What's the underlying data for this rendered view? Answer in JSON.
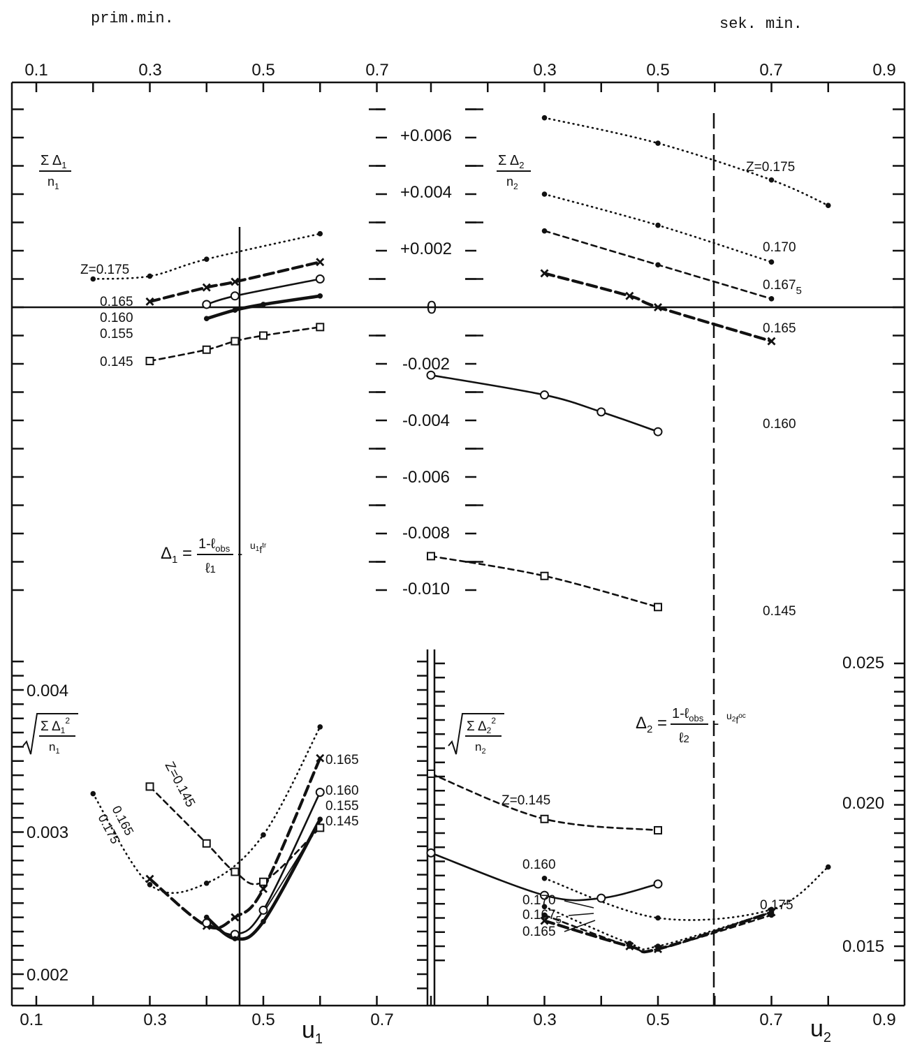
{
  "header": {
    "left": "prim.min.",
    "right": "sek. min."
  },
  "axes": {
    "u1_ticks": [
      "0.1",
      "0.3",
      "0.5",
      "0.7"
    ],
    "u2_ticks": [
      "0.3",
      "0.5",
      "0.7",
      "0.9"
    ],
    "u1_label": "u",
    "u1_sub": "1",
    "u2_label": "u",
    "u2_sub": "2",
    "mid_ticks": [
      "+0.006",
      "+0.004",
      "+0.002",
      "0",
      "-0.002",
      "-0.004",
      "-0.006",
      "-0.008",
      "-0.010"
    ],
    "bl_ticks": [
      "0.004",
      "0.003",
      "0.002"
    ],
    "br_ticks": [
      "0.025",
      "0.020",
      "0.015"
    ]
  },
  "colors": {
    "ink": "#111111",
    "background": "#ffffff"
  },
  "chart_data": [
    {
      "type": "line",
      "ylabel_num": "Σ Δ",
      "ylabel_sub": "1",
      "ylabel_den": "n",
      "ylabel_den_sub": "1",
      "x_unit": "u1",
      "ylim": [
        -0.01,
        0.006
      ],
      "series": [
        {
          "name": "Z=0.175",
          "style": "dotted",
          "marker": "dot",
          "points": [
            [
              0.2,
              0.001
            ],
            [
              0.3,
              0.0011
            ],
            [
              0.4,
              0.0017
            ],
            [
              0.6,
              0.0026
            ]
          ]
        },
        {
          "name": "0.165",
          "style": "dashed-bold",
          "marker": "x",
          "points": [
            [
              0.3,
              0.0002
            ],
            [
              0.4,
              0.0007
            ],
            [
              0.45,
              0.0009
            ],
            [
              0.6,
              0.0016
            ]
          ]
        },
        {
          "name": "0.160",
          "style": "solid",
          "marker": "circle",
          "points": [
            [
              0.4,
              0.0001
            ],
            [
              0.45,
              0.0004
            ],
            [
              0.6,
              0.001
            ]
          ]
        },
        {
          "name": "0.155",
          "style": "solid-bold",
          "marker": "dot",
          "points": [
            [
              0.4,
              -0.0004
            ],
            [
              0.45,
              -0.0001
            ],
            [
              0.5,
              0.0001
            ],
            [
              0.6,
              0.0004
            ]
          ]
        },
        {
          "name": "0.145",
          "style": "dashed",
          "marker": "square",
          "points": [
            [
              0.3,
              -0.0019
            ],
            [
              0.4,
              -0.0015
            ],
            [
              0.45,
              -0.0012
            ],
            [
              0.5,
              -0.001
            ],
            [
              0.6,
              -0.0007
            ]
          ]
        }
      ]
    },
    {
      "type": "line",
      "ylabel_num": "Σ Δ",
      "ylabel_sub": "2",
      "ylabel_den": "n",
      "ylabel_den_sub": "2",
      "x_unit": "u2",
      "ylim": [
        -0.01,
        0.006
      ],
      "series": [
        {
          "name": "Z=0.175",
          "style": "dotted",
          "marker": "dot",
          "points": [
            [
              0.4,
              0.0067
            ],
            [
              0.6,
              0.0058
            ],
            [
              0.8,
              0.0045
            ],
            [
              0.9,
              0.0036
            ]
          ]
        },
        {
          "name": "0.170",
          "style": "dotted",
          "marker": "dot",
          "points": [
            [
              0.4,
              0.004
            ],
            [
              0.6,
              0.0029
            ],
            [
              0.8,
              0.0016
            ]
          ]
        },
        {
          "name": "0.167",
          "name_sub": "5",
          "style": "dashed",
          "marker": "dot",
          "points": [
            [
              0.4,
              0.0027
            ],
            [
              0.6,
              0.0015
            ],
            [
              0.8,
              0.0003
            ]
          ]
        },
        {
          "name": "0.165",
          "style": "dashed-bold",
          "marker": "x",
          "points": [
            [
              0.4,
              0.0012
            ],
            [
              0.55,
              0.0004
            ],
            [
              0.6,
              0.0
            ],
            [
              0.8,
              -0.0012
            ]
          ]
        },
        {
          "name": "0.160",
          "style": "solid",
          "marker": "circle",
          "points": [
            [
              0.2,
              -0.0024
            ],
            [
              0.4,
              -0.0031
            ],
            [
              0.5,
              -0.0037
            ],
            [
              0.6,
              -0.0044
            ]
          ]
        },
        {
          "name": "0.145",
          "style": "dashed",
          "marker": "square",
          "points": [
            [
              0.2,
              -0.0088
            ],
            [
              0.4,
              -0.0095
            ],
            [
              0.6,
              -0.0106
            ]
          ]
        }
      ]
    },
    {
      "type": "line",
      "x_unit": "u1",
      "ylim": [
        0.002,
        0.004
      ],
      "formula_lhs": "Δ",
      "formula_lhs_sub": "1",
      "formula_num": "1-ℓ",
      "formula_num_sub": "obs",
      "formula_den": "ℓ",
      "formula_den_sub": "1",
      "formula_tail": "u",
      "formula_tail_sub": "1",
      "formula_tail_f": "f",
      "formula_tail_sup": "tr",
      "series": [
        {
          "name": "0.175",
          "style": "dotted",
          "marker": "dot",
          "points": [
            [
              0.2,
              0.00327
            ],
            [
              0.3,
              0.00263
            ],
            [
              0.4,
              0.00264
            ],
            [
              0.5,
              0.00298
            ],
            [
              0.6,
              0.00374
            ]
          ]
        },
        {
          "name": "0.165",
          "style": "dashed-bold",
          "marker": "x",
          "points": [
            [
              0.3,
              0.00267
            ],
            [
              0.4,
              0.00234
            ],
            [
              0.45,
              0.0024
            ],
            [
              0.5,
              0.0026
            ],
            [
              0.6,
              0.00352
            ]
          ]
        },
        {
          "name": "0.160",
          "style": "solid",
          "marker": "circle",
          "points": [
            [
              0.4,
              0.00236
            ],
            [
              0.45,
              0.00228
            ],
            [
              0.5,
              0.00245
            ],
            [
              0.6,
              0.00328
            ]
          ]
        },
        {
          "name": "0.155",
          "style": "solid-bold",
          "marker": "dot",
          "points": [
            [
              0.4,
              0.0024
            ],
            [
              0.45,
              0.00225
            ],
            [
              0.5,
              0.00237
            ],
            [
              0.6,
              0.00309
            ]
          ]
        },
        {
          "name": "Z=0.145",
          "style": "dashed",
          "marker": "square",
          "points": [
            [
              0.3,
              0.00332
            ],
            [
              0.4,
              0.00292
            ],
            [
              0.45,
              0.00272
            ],
            [
              0.5,
              0.00265
            ],
            [
              0.6,
              0.00303
            ]
          ]
        },
        {
          "name": "0.145",
          "style": "solid-thin",
          "marker": "none",
          "points": [
            [
              0.5,
              0.00243
            ],
            [
              0.6,
              0.00307
            ]
          ]
        }
      ]
    },
    {
      "type": "line",
      "x_unit": "u2",
      "ylim": [
        0.014,
        0.026
      ],
      "formula_lhs": "Δ",
      "formula_lhs_sub": "2",
      "formula_num": "1-ℓ",
      "formula_num_sub": "obs",
      "formula_den": "ℓ",
      "formula_den_sub": "2",
      "formula_tail": "u",
      "formula_tail_sub": "2",
      "formula_tail_f": "f",
      "formula_tail_sup": "oc",
      "series": [
        {
          "name": "Z=0.145",
          "style": "dashed",
          "marker": "square",
          "points": [
            [
              0.2,
              0.0211
            ],
            [
              0.4,
              0.0195
            ],
            [
              0.6,
              0.0191
            ]
          ]
        },
        {
          "name": "0.160",
          "style": "solid",
          "marker": "circle",
          "points": [
            [
              0.2,
              0.0183
            ],
            [
              0.4,
              0.0168
            ],
            [
              0.5,
              0.0167
            ],
            [
              0.6,
              0.0172
            ]
          ]
        },
        {
          "name": "0.175",
          "style": "dotted",
          "marker": "dot",
          "points": [
            [
              0.4,
              0.0174
            ],
            [
              0.6,
              0.016
            ],
            [
              0.8,
              0.0163
            ],
            [
              0.9,
              0.0178
            ]
          ]
        },
        {
          "name": "0.170",
          "style": "dotted",
          "marker": "dot",
          "points": [
            [
              0.4,
              0.0164
            ],
            [
              0.55,
              0.0151
            ],
            [
              0.6,
              0.015
            ],
            [
              0.8,
              0.0162
            ]
          ]
        },
        {
          "name": "0.167",
          "name_sub": "5",
          "style": "dashed",
          "marker": "dot",
          "points": [
            [
              0.4,
              0.0161
            ],
            [
              0.55,
              0.015
            ],
            [
              0.6,
              0.0149
            ],
            [
              0.8,
              0.0161
            ]
          ]
        },
        {
          "name": "0.165",
          "style": "dashed-bold",
          "marker": "x",
          "points": [
            [
              0.4,
              0.0159
            ],
            [
              0.55,
              0.015
            ],
            [
              0.6,
              0.0149
            ],
            [
              0.8,
              0.0162
            ]
          ]
        }
      ]
    }
  ]
}
